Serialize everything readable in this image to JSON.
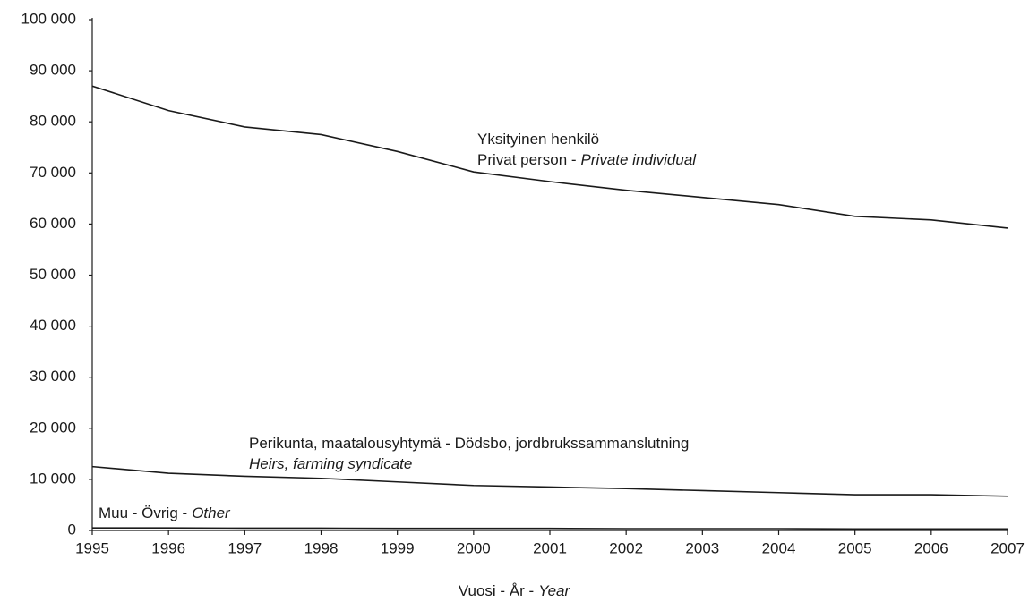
{
  "chart_data": {
    "type": "line",
    "x": [
      1995,
      1996,
      1997,
      1998,
      1999,
      2000,
      2001,
      2002,
      2003,
      2004,
      2005,
      2006,
      2007
    ],
    "xlim": [
      1995,
      2007
    ],
    "xticks": [
      1995,
      1996,
      1997,
      1998,
      1999,
      2000,
      2001,
      2002,
      2003,
      2004,
      2005,
      2006,
      2007
    ],
    "ylim": [
      0,
      100000
    ],
    "yticks": [
      0,
      {
        "value": 10000,
        "label": "10 000"
      },
      {
        "value": 20000,
        "label": "20 000"
      },
      {
        "value": 30000,
        "label": "30 000"
      },
      {
        "value": 40000,
        "label": "40 000"
      },
      {
        "value": 50000,
        "label": "50 000"
      },
      {
        "value": 60000,
        "label": "60 000"
      },
      {
        "value": 70000,
        "label": "70 000"
      },
      {
        "value": 80000,
        "label": "80 000"
      },
      {
        "value": 90000,
        "label": "90 000"
      },
      {
        "value": 100000,
        "label": "100 000"
      }
    ],
    "grid": false,
    "x_label": [
      {
        "text": "Vuosi - År -"
      },
      {
        "text": "Year",
        "italic": true
      }
    ],
    "series": [
      {
        "color": "#1a1a1a",
        "label": [
          [
            {
              "text": "Yksityinen henkilö"
            }
          ],
          [
            {
              "text": "Privat person -"
            },
            {
              "text": "Private individual",
              "italic": true
            }
          ]
        ],
        "values": [
          87000,
          82200,
          79000,
          77500,
          74200,
          70200,
          68300,
          66600,
          65200,
          63800,
          61500,
          60800,
          59200
        ]
      },
      {
        "color": "#1a1a1a",
        "label": [
          [
            {
              "text": "Perikunta, maatalousyhtymä - Dödsbo, jordbrukssammanslutning"
            }
          ],
          [
            {
              "text": "Heirs, farming syndicate",
              "italic": true
            }
          ]
        ],
        "values": [
          12500,
          11200,
          10600,
          10200,
          9500,
          8800,
          8500,
          8200,
          7800,
          7400,
          7000,
          7000,
          6700
        ]
      },
      {
        "color": "#1a1a1a",
        "label": [
          [
            {
              "text": "Muu - Övrig -"
            },
            {
              "text": "Other",
              "italic": true
            }
          ]
        ],
        "values": [
          500,
          500,
          450,
          450,
          400,
          400,
          400,
          350,
          350,
          350,
          300,
          300,
          300
        ]
      }
    ]
  }
}
